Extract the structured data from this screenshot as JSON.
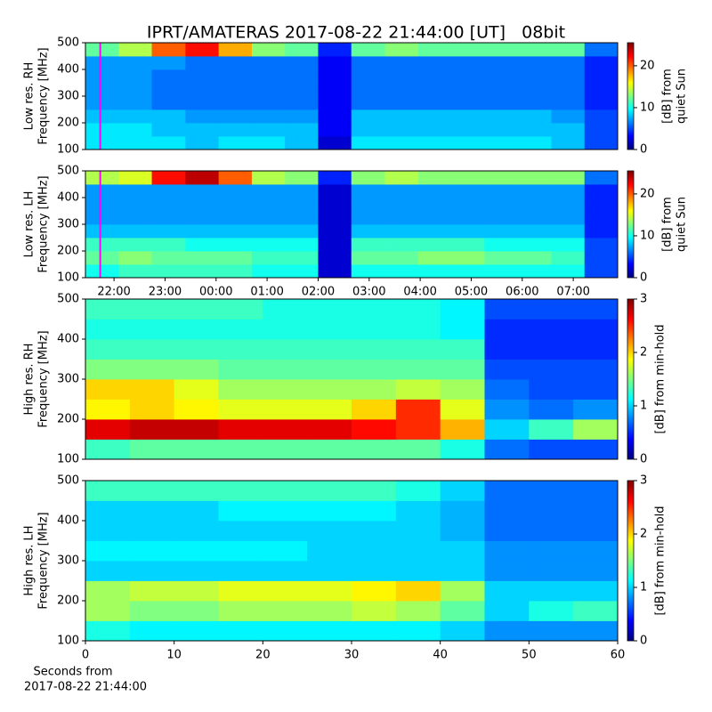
{
  "chart_data": [
    {
      "type": "heatmap",
      "title": "IPRT/AMATERAS 2017-08-22 21:44:00 [UT]   08bit",
      "colormap": "jet",
      "ylabel": [
        "Low res. RH",
        "Frequency [MHz]"
      ],
      "clabel": [
        "[dB] from",
        "quiet Sun"
      ],
      "xlim": [
        21.44,
        31.87
      ],
      "ylim": [
        100,
        500
      ],
      "yticks": [
        100,
        200,
        300,
        400,
        500
      ],
      "clim": [
        0,
        25.5
      ],
      "cticks": [
        0,
        10,
        20
      ],
      "marker_x": 21.73,
      "marker_color": "#ff00ff",
      "xbins": [
        21.44,
        22.09,
        22.74,
        23.4,
        24.05,
        24.7,
        25.35,
        26.0,
        26.65,
        27.31,
        27.96,
        28.61,
        29.26,
        29.92,
        30.57,
        31.22,
        31.87
      ],
      "ybins": [
        100,
        150,
        200,
        250,
        300,
        350,
        400,
        450,
        500
      ],
      "z": [
        [
          9,
          9,
          9,
          8,
          9,
          9,
          8,
          2,
          9,
          9,
          9,
          9,
          9,
          9,
          8,
          5
        ],
        [
          9,
          9,
          8,
          8,
          8,
          8,
          8,
          3,
          8,
          8,
          8,
          8,
          8,
          8,
          8,
          5
        ],
        [
          8,
          8,
          8,
          7,
          7,
          7,
          7,
          3,
          8,
          8,
          8,
          8,
          8,
          8,
          7,
          5
        ],
        [
          7,
          7,
          6,
          6,
          6,
          6,
          6,
          3,
          6,
          6,
          6,
          6,
          6,
          6,
          6,
          4
        ],
        [
          7,
          7,
          6,
          6,
          6,
          6,
          6,
          3,
          6,
          6,
          6,
          6,
          6,
          6,
          6,
          4
        ],
        [
          7,
          7,
          6,
          6,
          6,
          6,
          6,
          3,
          6,
          6,
          6,
          6,
          6,
          6,
          6,
          4
        ],
        [
          7,
          7,
          7,
          6,
          6,
          6,
          6,
          3,
          6,
          6,
          6,
          6,
          6,
          6,
          6,
          4
        ],
        [
          12,
          14,
          20,
          22,
          18,
          13,
          12,
          4,
          12,
          13,
          12,
          12,
          12,
          12,
          12,
          6
        ]
      ]
    },
    {
      "type": "heatmap",
      "colormap": "jet",
      "ylabel": [
        "Low res. LH",
        "Frequency [MHz]"
      ],
      "clabel": [
        "[dB] from",
        "quiet Sun"
      ],
      "xlim": [
        21.44,
        31.87
      ],
      "ylim": [
        100,
        500
      ],
      "yticks": [
        100,
        200,
        300,
        400,
        500
      ],
      "xticks": [
        {
          "value": 22,
          "label": "22:00"
        },
        {
          "value": 23,
          "label": "23:00"
        },
        {
          "value": 24,
          "label": "00:00"
        },
        {
          "value": 25,
          "label": "01:00"
        },
        {
          "value": 26,
          "label": "02:00"
        },
        {
          "value": 27,
          "label": "03:00"
        },
        {
          "value": 28,
          "label": "04:00"
        },
        {
          "value": 29,
          "label": "05:00"
        },
        {
          "value": 30,
          "label": "06:00"
        },
        {
          "value": 31,
          "label": "07:00"
        }
      ],
      "clim": [
        0,
        25.5
      ],
      "cticks": [
        0,
        10,
        20
      ],
      "marker_x": 21.73,
      "marker_color": "#ff00ff",
      "xbins": [
        21.44,
        22.09,
        22.74,
        23.4,
        24.05,
        24.7,
        25.35,
        26.0,
        26.65,
        27.31,
        27.96,
        28.61,
        29.26,
        29.92,
        30.57,
        31.22,
        31.87
      ],
      "ybins": [
        100,
        150,
        200,
        250,
        300,
        350,
        400,
        450,
        500
      ],
      "z": [
        [
          10,
          11,
          11,
          11,
          11,
          10,
          10,
          2,
          10,
          10,
          10,
          10,
          10,
          10,
          10,
          5
        ],
        [
          12,
          13,
          12,
          12,
          12,
          11,
          11,
          2,
          12,
          12,
          13,
          13,
          12,
          12,
          11,
          5
        ],
        [
          11,
          11,
          11,
          10,
          10,
          10,
          10,
          2,
          11,
          11,
          11,
          11,
          10,
          10,
          10,
          5
        ],
        [
          8,
          8,
          8,
          8,
          8,
          8,
          8,
          2,
          8,
          8,
          8,
          8,
          8,
          8,
          8,
          4
        ],
        [
          7,
          7,
          7,
          7,
          7,
          7,
          7,
          2,
          7,
          7,
          7,
          7,
          7,
          7,
          7,
          4
        ],
        [
          7,
          7,
          7,
          7,
          7,
          7,
          7,
          2,
          7,
          7,
          7,
          7,
          7,
          7,
          7,
          4
        ],
        [
          7,
          7,
          7,
          7,
          7,
          7,
          7,
          2,
          7,
          7,
          7,
          7,
          7,
          7,
          7,
          4
        ],
        [
          14,
          15,
          22,
          24,
          20,
          14,
          13,
          4,
          13,
          14,
          13,
          13,
          13,
          13,
          13,
          6
        ]
      ]
    },
    {
      "type": "heatmap",
      "colormap": "jet",
      "ylabel": [
        "High res. RH",
        "Frequency [MHz]"
      ],
      "clabel": [
        "[dB] from min-hold"
      ],
      "xlim": [
        0,
        60
      ],
      "ylim": [
        100,
        500
      ],
      "yticks": [
        100,
        200,
        300,
        400,
        500
      ],
      "clim": [
        0,
        3
      ],
      "cticks": [
        0,
        1,
        2,
        3
      ],
      "xbins": [
        0,
        5,
        10,
        15,
        20,
        25,
        30,
        35,
        40,
        45,
        50,
        55,
        60
      ],
      "ybins": [
        100,
        150,
        200,
        250,
        300,
        350,
        400,
        450,
        500
      ],
      "z": [
        [
          1.3,
          1.4,
          1.4,
          1.4,
          1.4,
          1.4,
          1.4,
          1.4,
          1.2,
          0.7,
          0.6,
          0.6
        ],
        [
          2.7,
          2.8,
          2.8,
          2.7,
          2.7,
          2.7,
          2.6,
          2.5,
          2.1,
          1.0,
          1.3,
          1.6
        ],
        [
          1.9,
          2.0,
          1.9,
          1.8,
          1.8,
          1.8,
          2.0,
          2.5,
          1.8,
          0.8,
          0.7,
          0.8
        ],
        [
          2.0,
          2.0,
          1.8,
          1.6,
          1.6,
          1.6,
          1.6,
          1.7,
          1.6,
          0.7,
          0.6,
          0.6
        ],
        [
          1.5,
          1.5,
          1.5,
          1.4,
          1.4,
          1.4,
          1.4,
          1.4,
          1.4,
          0.6,
          0.6,
          0.6
        ],
        [
          1.3,
          1.3,
          1.3,
          1.3,
          1.3,
          1.3,
          1.3,
          1.3,
          1.3,
          0.5,
          0.5,
          0.5
        ],
        [
          1.2,
          1.2,
          1.2,
          1.2,
          1.2,
          1.2,
          1.2,
          1.2,
          1.1,
          0.5,
          0.5,
          0.5
        ],
        [
          1.3,
          1.3,
          1.3,
          1.3,
          1.2,
          1.2,
          1.2,
          1.2,
          1.1,
          0.6,
          0.6,
          0.6
        ]
      ]
    },
    {
      "type": "heatmap",
      "colormap": "jet",
      "ylabel": [
        "High res. LH",
        "Frequency [MHz]"
      ],
      "clabel": [
        "[dB] from min-hold"
      ],
      "xlabel": [
        "Seconds from",
        "2017-08-22 21:44:00"
      ],
      "xlim": [
        0,
        60
      ],
      "ylim": [
        100,
        500
      ],
      "yticks": [
        100,
        200,
        300,
        400,
        500
      ],
      "xticks": [
        0,
        10,
        20,
        30,
        40,
        50,
        60
      ],
      "clim": [
        0,
        3
      ],
      "cticks": [
        0,
        1,
        2,
        3
      ],
      "xbins": [
        0,
        5,
        10,
        15,
        20,
        25,
        30,
        35,
        40,
        45,
        50,
        55,
        60
      ],
      "ybins": [
        100,
        150,
        200,
        250,
        300,
        350,
        400,
        450,
        500
      ],
      "z": [
        [
          1.2,
          1.1,
          1.1,
          1.1,
          1.1,
          1.1,
          1.1,
          1.1,
          1.0,
          0.8,
          0.8,
          0.8
        ],
        [
          1.6,
          1.5,
          1.5,
          1.6,
          1.6,
          1.6,
          1.7,
          1.6,
          1.4,
          1.0,
          1.2,
          1.3
        ],
        [
          1.6,
          1.7,
          1.7,
          1.8,
          1.8,
          1.8,
          1.9,
          2.0,
          1.6,
          1.0,
          1.0,
          1.0
        ],
        [
          1.0,
          1.0,
          1.0,
          1.0,
          1.0,
          1.0,
          1.0,
          1.0,
          1.0,
          0.8,
          0.8,
          0.8
        ],
        [
          1.1,
          1.1,
          1.1,
          1.1,
          1.1,
          1.0,
          1.0,
          1.0,
          1.0,
          0.8,
          0.8,
          0.8
        ],
        [
          1.0,
          1.0,
          1.0,
          1.0,
          1.0,
          1.0,
          1.0,
          1.0,
          0.9,
          0.7,
          0.7,
          0.7
        ],
        [
          1.0,
          1.0,
          1.0,
          1.1,
          1.1,
          1.1,
          1.1,
          1.0,
          0.9,
          0.7,
          0.7,
          0.7
        ],
        [
          1.3,
          1.3,
          1.3,
          1.3,
          1.3,
          1.3,
          1.3,
          1.2,
          1.0,
          0.7,
          0.7,
          0.7
        ]
      ]
    }
  ]
}
